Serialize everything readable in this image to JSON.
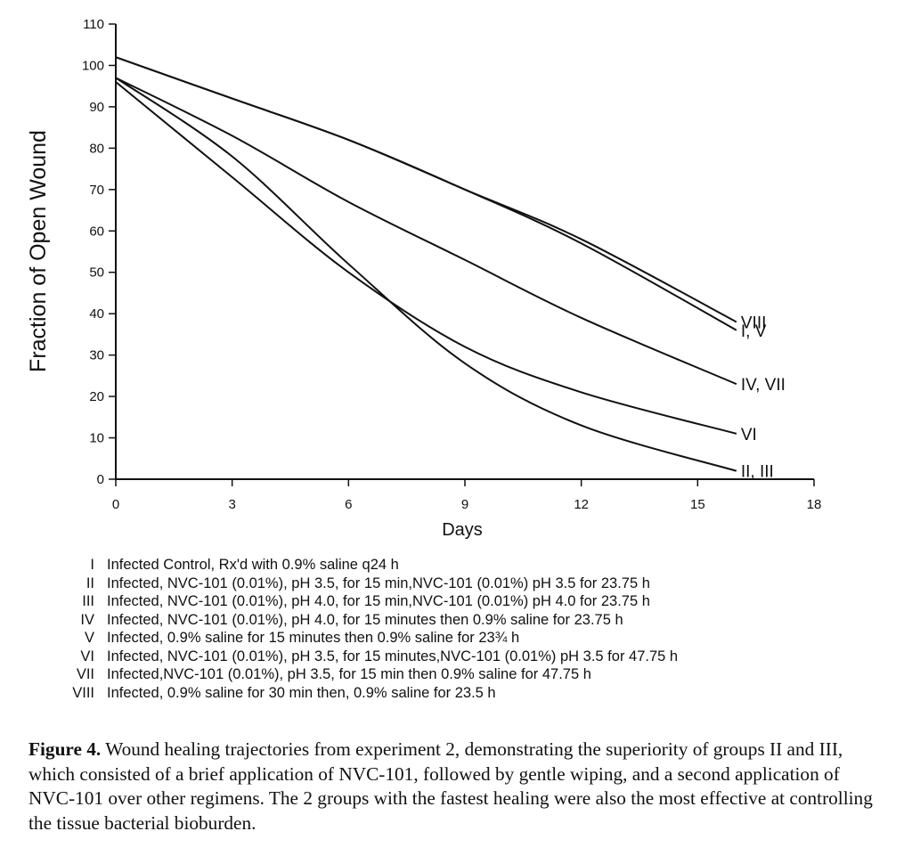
{
  "chart_data": {
    "type": "line",
    "title": "",
    "xlabel": "Days",
    "ylabel": "Fraction of Open Wound",
    "xlim": [
      0,
      18
    ],
    "ylim": [
      0,
      110
    ],
    "xticks": [
      0,
      3,
      6,
      9,
      12,
      15,
      18
    ],
    "yticks": [
      0,
      10,
      20,
      30,
      40,
      50,
      60,
      70,
      80,
      90,
      100,
      110
    ],
    "grid": false,
    "series": [
      {
        "name": "VIII",
        "label": "VIII",
        "x": [
          0,
          3,
          6,
          9,
          12,
          16
        ],
        "y": [
          102,
          92,
          82,
          70,
          58,
          38
        ]
      },
      {
        "name": "I, V",
        "label": "I, V",
        "x": [
          0,
          3,
          6,
          9,
          12,
          16
        ],
        "y": [
          102,
          92,
          82,
          70,
          57,
          36
        ]
      },
      {
        "name": "IV, VII",
        "label": "IV, VII",
        "x": [
          0,
          3,
          6,
          9,
          12,
          16
        ],
        "y": [
          97,
          83,
          67,
          53,
          39,
          23
        ]
      },
      {
        "name": "VI",
        "label": "VI",
        "x": [
          0,
          3,
          6,
          9,
          12,
          16
        ],
        "y": [
          96,
          73,
          50,
          32,
          21,
          11
        ]
      },
      {
        "name": "II, III",
        "label": "II, III",
        "x": [
          0,
          3,
          6,
          9,
          12,
          16
        ],
        "y": [
          97,
          78,
          52,
          28,
          13,
          2
        ]
      }
    ]
  },
  "legend": [
    {
      "num": "I",
      "text": "Infected Control, Rx'd with 0.9% saline q24 h"
    },
    {
      "num": "II",
      "text": "Infected, NVC-101 (0.01%), pH 3.5, for 15 min,NVC-101 (0.01%) pH 3.5 for 23.75 h"
    },
    {
      "num": "III",
      "text": "Infected, NVC-101 (0.01%), pH 4.0, for 15 min,NVC-101 (0.01%) pH 4.0 for 23.75 h"
    },
    {
      "num": "IV",
      "text": "Infected, NVC-101 (0.01%), pH 4.0, for 15 minutes then 0.9% saline for 23.75 h"
    },
    {
      "num": "V",
      "text": "Infected, 0.9% saline for 15 minutes then 0.9% saline for 23¾ h"
    },
    {
      "num": "VI",
      "text": "Infected, NVC-101 (0.01%), pH 3.5, for 15 minutes,NVC-101 (0.01%) pH 3.5 for 47.75 h"
    },
    {
      "num": "VII",
      "text": "Infected,NVC-101 (0.01%), pH 3.5, for 15 min then 0.9% saline for 47.75 h"
    },
    {
      "num": "VIII",
      "text": "Infected, 0.9% saline for 30 min then, 0.9% saline for 23.5 h"
    }
  ],
  "caption": {
    "label": "Figure 4.",
    "text": "Wound healing trajectories from experiment 2, demonstrating the superiority of groups II and III, which consisted of a brief application of NVC-101, followed by gentle wiping, and a second application of NVC-101 over other regimens. The 2 groups with the fastest healing were also the most effective at controlling the tissue bacterial bioburden."
  }
}
